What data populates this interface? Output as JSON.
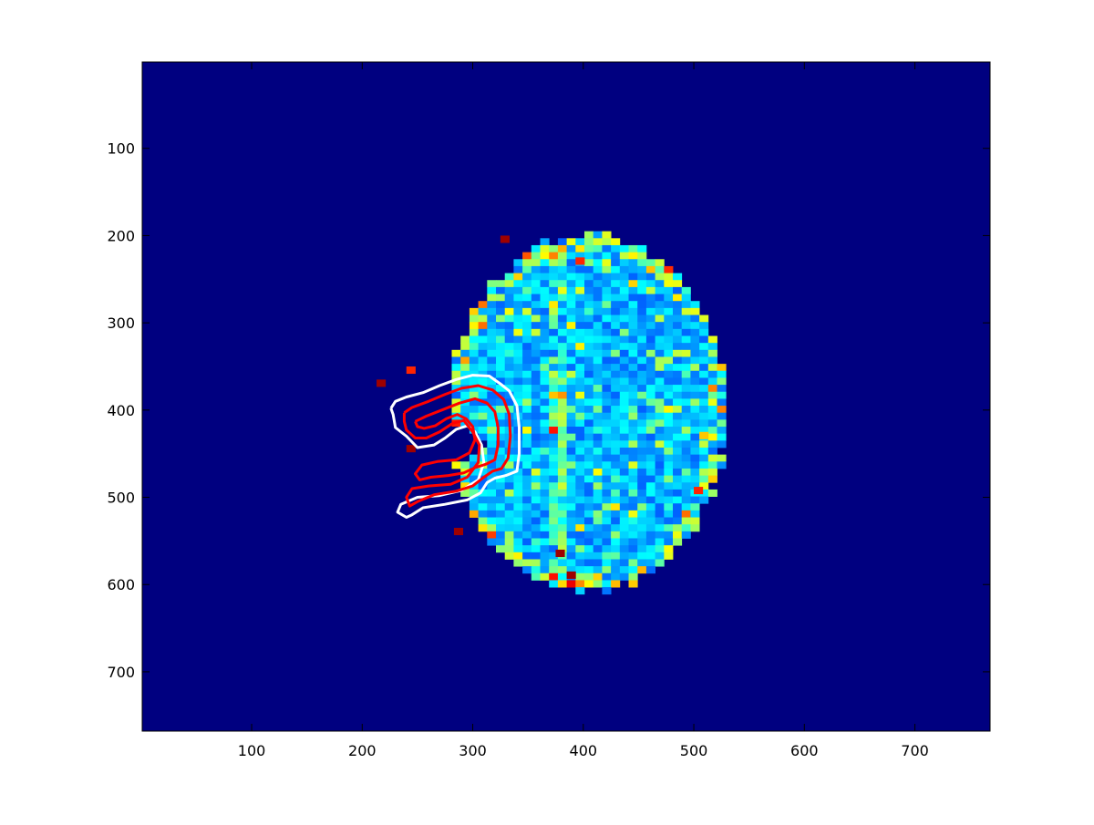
{
  "chart_data": {
    "type": "heatmap",
    "title": "",
    "xlabel": "",
    "ylabel": "",
    "xlim": [
      1,
      768
    ],
    "ylim": [
      1,
      768
    ],
    "y_axis_direction": "reversed",
    "colormap": "jet",
    "background_value_color": "#000080",
    "xticks": [
      100,
      200,
      300,
      400,
      500,
      600,
      700
    ],
    "yticks": [
      100,
      200,
      300,
      400,
      500,
      600,
      700
    ],
    "brain_region": {
      "center": [
        400,
        400
      ],
      "radii": [
        125,
        205
      ]
    },
    "hotspots": [
      {
        "x": 325,
        "y": 200,
        "level": "red"
      },
      {
        "x": 385,
        "y": 585,
        "level": "red"
      },
      {
        "x": 213,
        "y": 365,
        "level": "red"
      },
      {
        "x": 500,
        "y": 488,
        "level": "orange"
      },
      {
        "x": 240,
        "y": 350,
        "level": "orange"
      },
      {
        "x": 283,
        "y": 535,
        "level": "red"
      },
      {
        "x": 375,
        "y": 560,
        "level": "red"
      },
      {
        "x": 393,
        "y": 225,
        "level": "orange"
      },
      {
        "x": 505,
        "y": 425,
        "level": "yellow"
      },
      {
        "x": 240,
        "y": 440,
        "level": "red"
      }
    ],
    "contours": [
      {
        "name": "outer",
        "color": "#ffffff",
        "points": [
          [
            226,
            398
          ],
          [
            230,
            390
          ],
          [
            240,
            385
          ],
          [
            255,
            380
          ],
          [
            270,
            372
          ],
          [
            285,
            365
          ],
          [
            300,
            360
          ],
          [
            315,
            361
          ],
          [
            325,
            370
          ],
          [
            333,
            378
          ],
          [
            340,
            395
          ],
          [
            342,
            420
          ],
          [
            342,
            450
          ],
          [
            340,
            470
          ],
          [
            330,
            475
          ],
          [
            320,
            478
          ],
          [
            313,
            483
          ],
          [
            307,
            495
          ],
          [
            295,
            503
          ],
          [
            275,
            508
          ],
          [
            255,
            512
          ],
          [
            245,
            520
          ],
          [
            240,
            523
          ],
          [
            232,
            517
          ],
          [
            235,
            508
          ],
          [
            250,
            500
          ],
          [
            270,
            498
          ],
          [
            290,
            492
          ],
          [
            305,
            480
          ],
          [
            310,
            460
          ],
          [
            308,
            440
          ],
          [
            302,
            425
          ],
          [
            295,
            418
          ],
          [
            285,
            422
          ],
          [
            275,
            432
          ],
          [
            265,
            440
          ],
          [
            250,
            443
          ],
          [
            240,
            430
          ],
          [
            230,
            420
          ],
          [
            228,
            405
          ],
          [
            226,
            398
          ]
        ]
      },
      {
        "name": "middle",
        "color": "#ff0000",
        "points": [
          [
            238,
            403
          ],
          [
            245,
            397
          ],
          [
            260,
            390
          ],
          [
            275,
            382
          ],
          [
            290,
            375
          ],
          [
            305,
            372
          ],
          [
            318,
            377
          ],
          [
            328,
            388
          ],
          [
            333,
            405
          ],
          [
            334,
            430
          ],
          [
            332,
            455
          ],
          [
            326,
            467
          ],
          [
            318,
            470
          ],
          [
            310,
            477
          ],
          [
            300,
            487
          ],
          [
            285,
            493
          ],
          [
            265,
            497
          ],
          [
            250,
            505
          ],
          [
            243,
            510
          ],
          [
            240,
            500
          ],
          [
            245,
            490
          ],
          [
            260,
            487
          ],
          [
            280,
            485
          ],
          [
            295,
            477
          ],
          [
            305,
            460
          ],
          [
            306,
            440
          ],
          [
            300,
            425
          ],
          [
            292,
            412
          ],
          [
            282,
            415
          ],
          [
            270,
            425
          ],
          [
            258,
            432
          ],
          [
            248,
            432
          ],
          [
            240,
            423
          ],
          [
            238,
            413
          ],
          [
            238,
            403
          ]
        ]
      },
      {
        "name": "inner",
        "color": "#ff0000",
        "points": [
          [
            248,
            413
          ],
          [
            258,
            407
          ],
          [
            272,
            400
          ],
          [
            288,
            392
          ],
          [
            302,
            387
          ],
          [
            313,
            392
          ],
          [
            320,
            402
          ],
          [
            323,
            420
          ],
          [
            323,
            440
          ],
          [
            320,
            457
          ],
          [
            312,
            462
          ],
          [
            302,
            466
          ],
          [
            292,
            472
          ],
          [
            278,
            475
          ],
          [
            262,
            477
          ],
          [
            252,
            480
          ],
          [
            248,
            473
          ],
          [
            254,
            463
          ],
          [
            268,
            459
          ],
          [
            285,
            457
          ],
          [
            297,
            449
          ],
          [
            302,
            434
          ],
          [
            300,
            419
          ],
          [
            294,
            410
          ],
          [
            286,
            405
          ],
          [
            276,
            410
          ],
          [
            266,
            418
          ],
          [
            256,
            421
          ],
          [
            250,
            419
          ],
          [
            248,
            413
          ]
        ]
      }
    ]
  }
}
